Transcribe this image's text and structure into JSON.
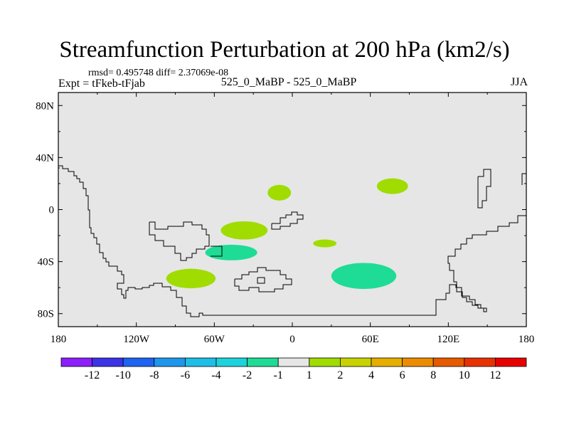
{
  "header": {
    "title": "Streamfunction Perturbation at 200 hPa (km2/s)",
    "stats": "rmsd= 0.495748 diff= 2.37069e-08",
    "experiment": "Expt = tFkeb-tFjab",
    "center_label": "525_0_MaBP - 525_0_MaBP",
    "season": "JJA"
  },
  "map": {
    "background_color": "#e6e6e6",
    "x_ticks": [
      {
        "value": -180,
        "label": "180"
      },
      {
        "value": -120,
        "label": "120W"
      },
      {
        "value": -60,
        "label": "60W"
      },
      {
        "value": 0,
        "label": "0"
      },
      {
        "value": 60,
        "label": "60E"
      },
      {
        "value": 120,
        "label": "120E"
      },
      {
        "value": 180,
        "label": "180"
      }
    ],
    "y_ticks": [
      {
        "value": 80,
        "label": "80N"
      },
      {
        "value": 40,
        "label": "40N"
      },
      {
        "value": 0,
        "label": "0"
      },
      {
        "value": -40,
        "label": "40S"
      },
      {
        "value": -80,
        "label": "80S"
      }
    ]
  },
  "chart_data": {
    "type": "heatmap",
    "title": "Streamfunction Perturbation at 200 hPa (km2/s)",
    "xlim": [
      -180,
      180
    ],
    "ylim": [
      -90,
      90
    ],
    "features": [
      {
        "lon": -10,
        "lat": 13,
        "lon_radius": 9,
        "lat_radius": 6,
        "color": "#a0dc00"
      },
      {
        "lon": 77,
        "lat": 18,
        "lon_radius": 12,
        "lat_radius": 6,
        "color": "#a0dc00"
      },
      {
        "lon": -37,
        "lat": -16,
        "lon_radius": 18,
        "lat_radius": 7,
        "color": "#a0dc00"
      },
      {
        "lon": 25,
        "lat": -26,
        "lon_radius": 9,
        "lat_radius": 3,
        "color": "#a0dc00"
      },
      {
        "lon": -47,
        "lat": -33,
        "lon_radius": 20,
        "lat_radius": 6,
        "color": "#1edc96"
      },
      {
        "lon": 55,
        "lat": -51,
        "lon_radius": 25,
        "lat_radius": 10,
        "color": "#1edc96"
      },
      {
        "lon": -78,
        "lat": -53,
        "lon_radius": 19,
        "lat_radius": 7.5,
        "color": "#a0dc00"
      }
    ],
    "colorbar": {
      "labels": [
        "-12",
        "-10",
        "-8",
        "-6",
        "-4",
        "-2",
        "-1",
        "1",
        "2",
        "4",
        "6",
        "8",
        "10",
        "12"
      ],
      "colors": [
        "#8c1efa",
        "#3c32e6",
        "#1e64f0",
        "#1e96eb",
        "#1ebee6",
        "#1ed2dc",
        "#1edc96",
        "#e6e6e6",
        "#a0dc00",
        "#c8d200",
        "#e6af00",
        "#eb8c00",
        "#e65a00",
        "#e63200",
        "#e60000"
      ]
    }
  }
}
